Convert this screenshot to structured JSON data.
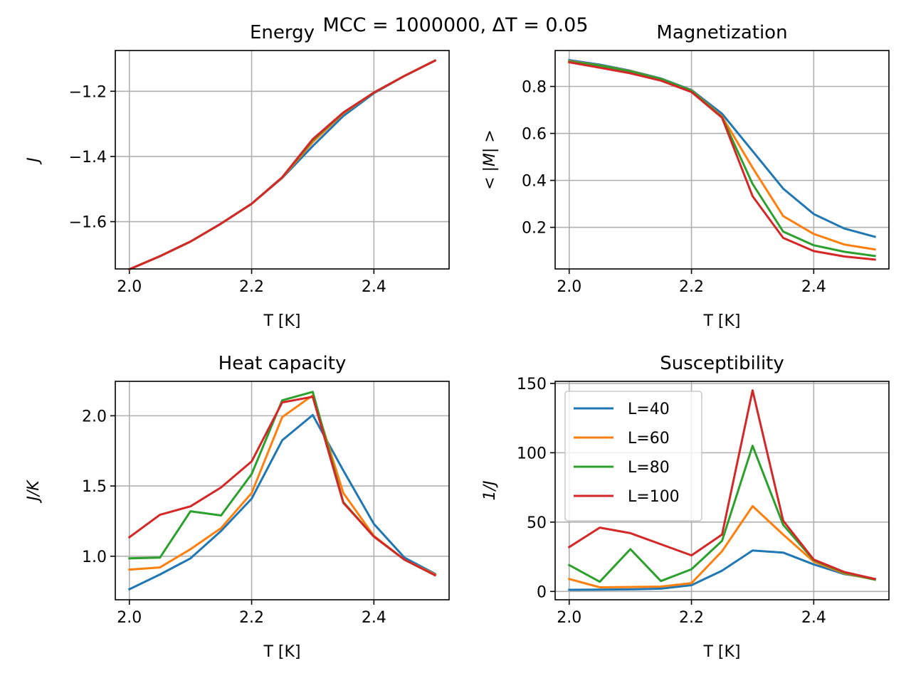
{
  "chart_data": {
    "suptitle": "MCC = 1000000, ΔT = 0.05",
    "legend": {
      "placement": "upper-left",
      "panel": "susceptibility"
    },
    "series_meta": [
      {
        "name": "L=40",
        "color": "#1f77b4"
      },
      {
        "name": "L=60",
        "color": "#ff7f0e"
      },
      {
        "name": "L=80",
        "color": "#2ca02c"
      },
      {
        "name": "L=100",
        "color": "#d62728"
      }
    ],
    "x": [
      2.0,
      2.05,
      2.1,
      2.15,
      2.2,
      2.25,
      2.3,
      2.35,
      2.4,
      2.45,
      2.5
    ],
    "panels": [
      {
        "id": "energy",
        "type": "line",
        "title": "Energy",
        "xlabel": "T [K]",
        "ylabel": "J",
        "xlim": [
          1.977,
          2.523
        ],
        "ylim": [
          -1.745,
          -1.075
        ],
        "xticks": [
          "2.0",
          "2.2",
          "2.4"
        ],
        "yticks": [
          "−1.2",
          "−1.4",
          "−1.6"
        ],
        "grid": true,
        "series": [
          {
            "name": "L=40",
            "values": [
              -1.746,
              -1.706,
              -1.661,
              -1.606,
              -1.545,
              -1.466,
              -1.368,
              -1.276,
              -1.206,
              -1.153,
              -1.106
            ]
          },
          {
            "name": "L=60",
            "values": [
              -1.746,
              -1.706,
              -1.661,
              -1.606,
              -1.545,
              -1.465,
              -1.356,
              -1.268,
              -1.204,
              -1.153,
              -1.106
            ]
          },
          {
            "name": "L=80",
            "values": [
              -1.746,
              -1.706,
              -1.661,
              -1.606,
              -1.545,
              -1.464,
              -1.35,
              -1.266,
              -1.204,
              -1.153,
              -1.106
            ]
          },
          {
            "name": "L=100",
            "values": [
              -1.746,
              -1.706,
              -1.661,
              -1.606,
              -1.545,
              -1.464,
              -1.347,
              -1.265,
              -1.204,
              -1.153,
              -1.106
            ]
          }
        ]
      },
      {
        "id": "magnetization",
        "type": "line",
        "title": "Magnetization",
        "xlabel": "T [K]",
        "ylabel": "< |M| >",
        "xlim": [
          1.977,
          2.523
        ],
        "ylim": [
          0.023,
          0.953
        ],
        "xticks": [
          "2.0",
          "2.2",
          "2.4"
        ],
        "yticks": [
          "0.2",
          "0.4",
          "0.6",
          "0.8"
        ],
        "grid": true,
        "series": [
          {
            "name": "L=40",
            "values": [
              0.912,
              0.893,
              0.867,
              0.834,
              0.785,
              0.684,
              0.525,
              0.365,
              0.257,
              0.195,
              0.16
            ]
          },
          {
            "name": "L=60",
            "values": [
              0.908,
              0.89,
              0.865,
              0.832,
              0.783,
              0.672,
              0.454,
              0.248,
              0.172,
              0.127,
              0.106
            ]
          },
          {
            "name": "L=80",
            "values": [
              0.906,
              0.889,
              0.864,
              0.832,
              0.782,
              0.669,
              0.385,
              0.182,
              0.124,
              0.096,
              0.078
            ]
          },
          {
            "name": "L=100",
            "values": [
              0.903,
              0.88,
              0.856,
              0.825,
              0.776,
              0.667,
              0.333,
              0.155,
              0.099,
              0.076,
              0.063
            ]
          }
        ]
      },
      {
        "id": "heat-capacity",
        "type": "line",
        "title": "Heat capacity",
        "xlabel": "T [K]",
        "ylabel": "J/K",
        "xlim": [
          1.977,
          2.523
        ],
        "ylim": [
          0.69,
          2.245
        ],
        "xticks": [
          "2.0",
          "2.2",
          "2.4"
        ],
        "yticks": [
          "1.0",
          "1.5",
          "2.0"
        ],
        "grid": true,
        "series": [
          {
            "name": "L=40",
            "values": [
              0.765,
              0.87,
              0.985,
              1.18,
              1.41,
              1.825,
              2.005,
              1.61,
              1.23,
              0.99,
              0.875
            ]
          },
          {
            "name": "L=60",
            "values": [
              0.905,
              0.92,
              1.05,
              1.2,
              1.45,
              1.99,
              2.145,
              1.45,
              1.145,
              0.975,
              0.87
            ]
          },
          {
            "name": "L=80",
            "values": [
              0.985,
              0.99,
              1.32,
              1.29,
              1.585,
              2.11,
              2.17,
              1.385,
              1.14,
              0.975,
              0.865
            ]
          },
          {
            "name": "L=100",
            "values": [
              1.135,
              1.295,
              1.355,
              1.49,
              1.675,
              2.095,
              2.135,
              1.38,
              1.14,
              0.975,
              0.865
            ]
          }
        ]
      },
      {
        "id": "susceptibility",
        "type": "line",
        "title": "Susceptibility",
        "xlabel": "T [K]",
        "ylabel": "1/J",
        "xlim": [
          1.977,
          2.523
        ],
        "ylim": [
          -6.0,
          151.5
        ],
        "xticks": [
          "2.0",
          "2.2",
          "2.4"
        ],
        "yticks": [
          "0",
          "50",
          "100",
          "150"
        ],
        "grid": true,
        "series": [
          {
            "name": "L=40",
            "values": [
              1.2,
              1.3,
              1.5,
              2.0,
              4.5,
              15.0,
              29.5,
              28.0,
              19.5,
              12.5,
              9.0
            ]
          },
          {
            "name": "L=60",
            "values": [
              9.0,
              3.0,
              3.2,
              3.5,
              6.0,
              29.0,
              61.5,
              41.0,
              21.5,
              13.0,
              8.5
            ]
          },
          {
            "name": "L=80",
            "values": [
              19.0,
              7.0,
              30.5,
              7.5,
              16.0,
              36.5,
              105.0,
              48.0,
              22.5,
              13.5,
              8.5
            ]
          },
          {
            "name": "L=100",
            "values": [
              32.0,
              46.0,
              42.0,
              34.0,
              26.0,
              41.0,
              145.0,
              51.0,
              23.0,
              14.0,
              9.0
            ]
          }
        ]
      }
    ]
  }
}
